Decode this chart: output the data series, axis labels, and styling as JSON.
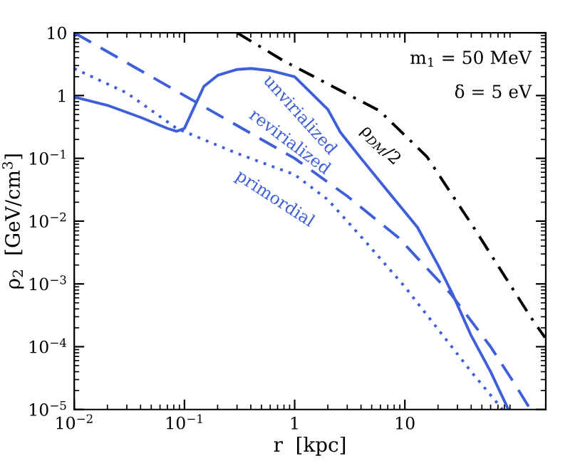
{
  "chart_data": {
    "type": "line",
    "log": "xy",
    "xlabel": "r  [kpc]",
    "ylabel": "ρ$_{2}$  [GeV/cm$^{3}$]",
    "annotations": [
      "m$_{1}$ = 50 MeV",
      "δ = 5 eV"
    ],
    "xlim": [
      0.01,
      190
    ],
    "ylim": [
      1e-05,
      10
    ],
    "xticks": [
      {
        "value": 0.01,
        "label": "10$^{−2}$"
      },
      {
        "value": 0.1,
        "label": "10$^{−1}$"
      },
      1,
      10
    ],
    "yticks": [
      {
        "value": 1e-05,
        "label": "10$^{−5}$"
      },
      {
        "value": 0.0001,
        "label": "10$^{−4}$"
      },
      {
        "value": 0.001,
        "label": "10$^{−3}$"
      },
      {
        "value": 0.01,
        "label": "10$^{−2}$"
      },
      {
        "value": 0.1,
        "label": "10$^{−1}$"
      },
      1,
      10
    ],
    "grid": false,
    "legend": false,
    "series": [
      {
        "name": "unvirialized",
        "color": "#3f5fd9",
        "line_style": "solid",
        "x": [
          0.01,
          0.02,
          0.04,
          0.07,
          0.085,
          0.1,
          0.12,
          0.15,
          0.2,
          0.3,
          0.4,
          0.6,
          1,
          2,
          2.6,
          4,
          7,
          13,
          20,
          27,
          40,
          60,
          87
        ],
        "values": [
          0.95,
          0.7,
          0.45,
          0.3,
          0.27,
          0.3,
          0.6,
          1.4,
          2.1,
          2.6,
          2.7,
          2.5,
          2.0,
          0.6,
          0.26,
          0.1,
          0.03,
          0.008,
          0.002,
          0.0007,
          0.00015,
          4e-05,
          1e-05
        ]
      },
      {
        "name": "revirialized",
        "color": "#3f5fd9",
        "line_style": "dashed",
        "x": [
          0.01,
          0.1,
          1,
          3,
          8.7,
          26,
          60,
          100,
          138
        ],
        "values": [
          10,
          1,
          0.1,
          0.025,
          0.0055,
          0.0007,
          0.0001,
          2.5e-05,
          1e-05
        ]
      },
      {
        "name": "primordial",
        "color": "#3f5fd9",
        "line_style": "dotted",
        "x": [
          0.01,
          0.03,
          0.085,
          0.3,
          1,
          2,
          4.4,
          10,
          21,
          40,
          77
        ],
        "values": [
          2.7,
          1.1,
          0.3,
          0.12,
          0.055,
          0.022,
          0.0047,
          0.0009,
          0.00017,
          4e-05,
          1e-05
        ]
      },
      {
        "name": "ρ$_{DM}$/2",
        "color": "#000000",
        "line_style": "dashdot",
        "x": [
          0.3,
          0.81,
          5.9,
          15.8,
          42,
          138,
          187
        ],
        "values": [
          10,
          3.5,
          0.57,
          0.107,
          0.008,
          0.0003,
          0.00014
        ]
      }
    ]
  }
}
